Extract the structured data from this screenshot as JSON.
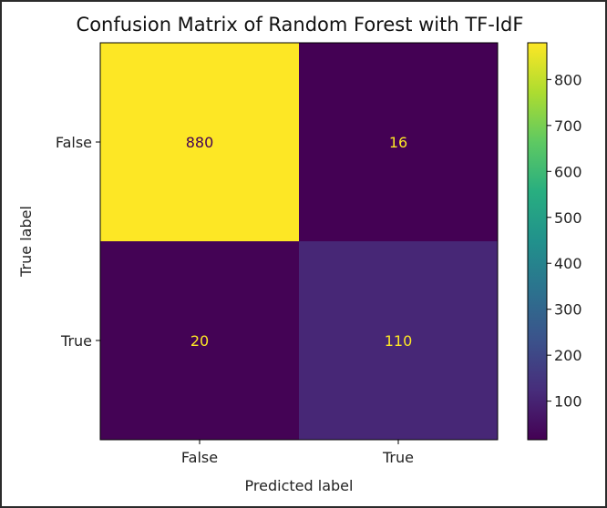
{
  "chart_data": {
    "type": "heatmap",
    "title": "Confusion Matrix of Random Forest with TF-IdF",
    "xlabel": "Predicted label",
    "ylabel": "True label",
    "x_categories": [
      "False",
      "True"
    ],
    "y_categories": [
      "False",
      "True"
    ],
    "matrix": [
      [
        880,
        16
      ],
      [
        20,
        110
      ]
    ],
    "cell_labels": [
      [
        "880",
        "16"
      ],
      [
        "20",
        "110"
      ]
    ],
    "colormap": "viridis",
    "colorbar": {
      "min": 16,
      "max": 880,
      "ticks": [
        100,
        200,
        300,
        400,
        500,
        600,
        700,
        800
      ],
      "tick_labels": [
        "100",
        "200",
        "300",
        "400",
        "500",
        "600",
        "700",
        "800"
      ]
    },
    "colors": {
      "low": "#440154",
      "high": "#fde725",
      "text_on_dark": "#fde725",
      "text_on_light": "#440154"
    }
  }
}
